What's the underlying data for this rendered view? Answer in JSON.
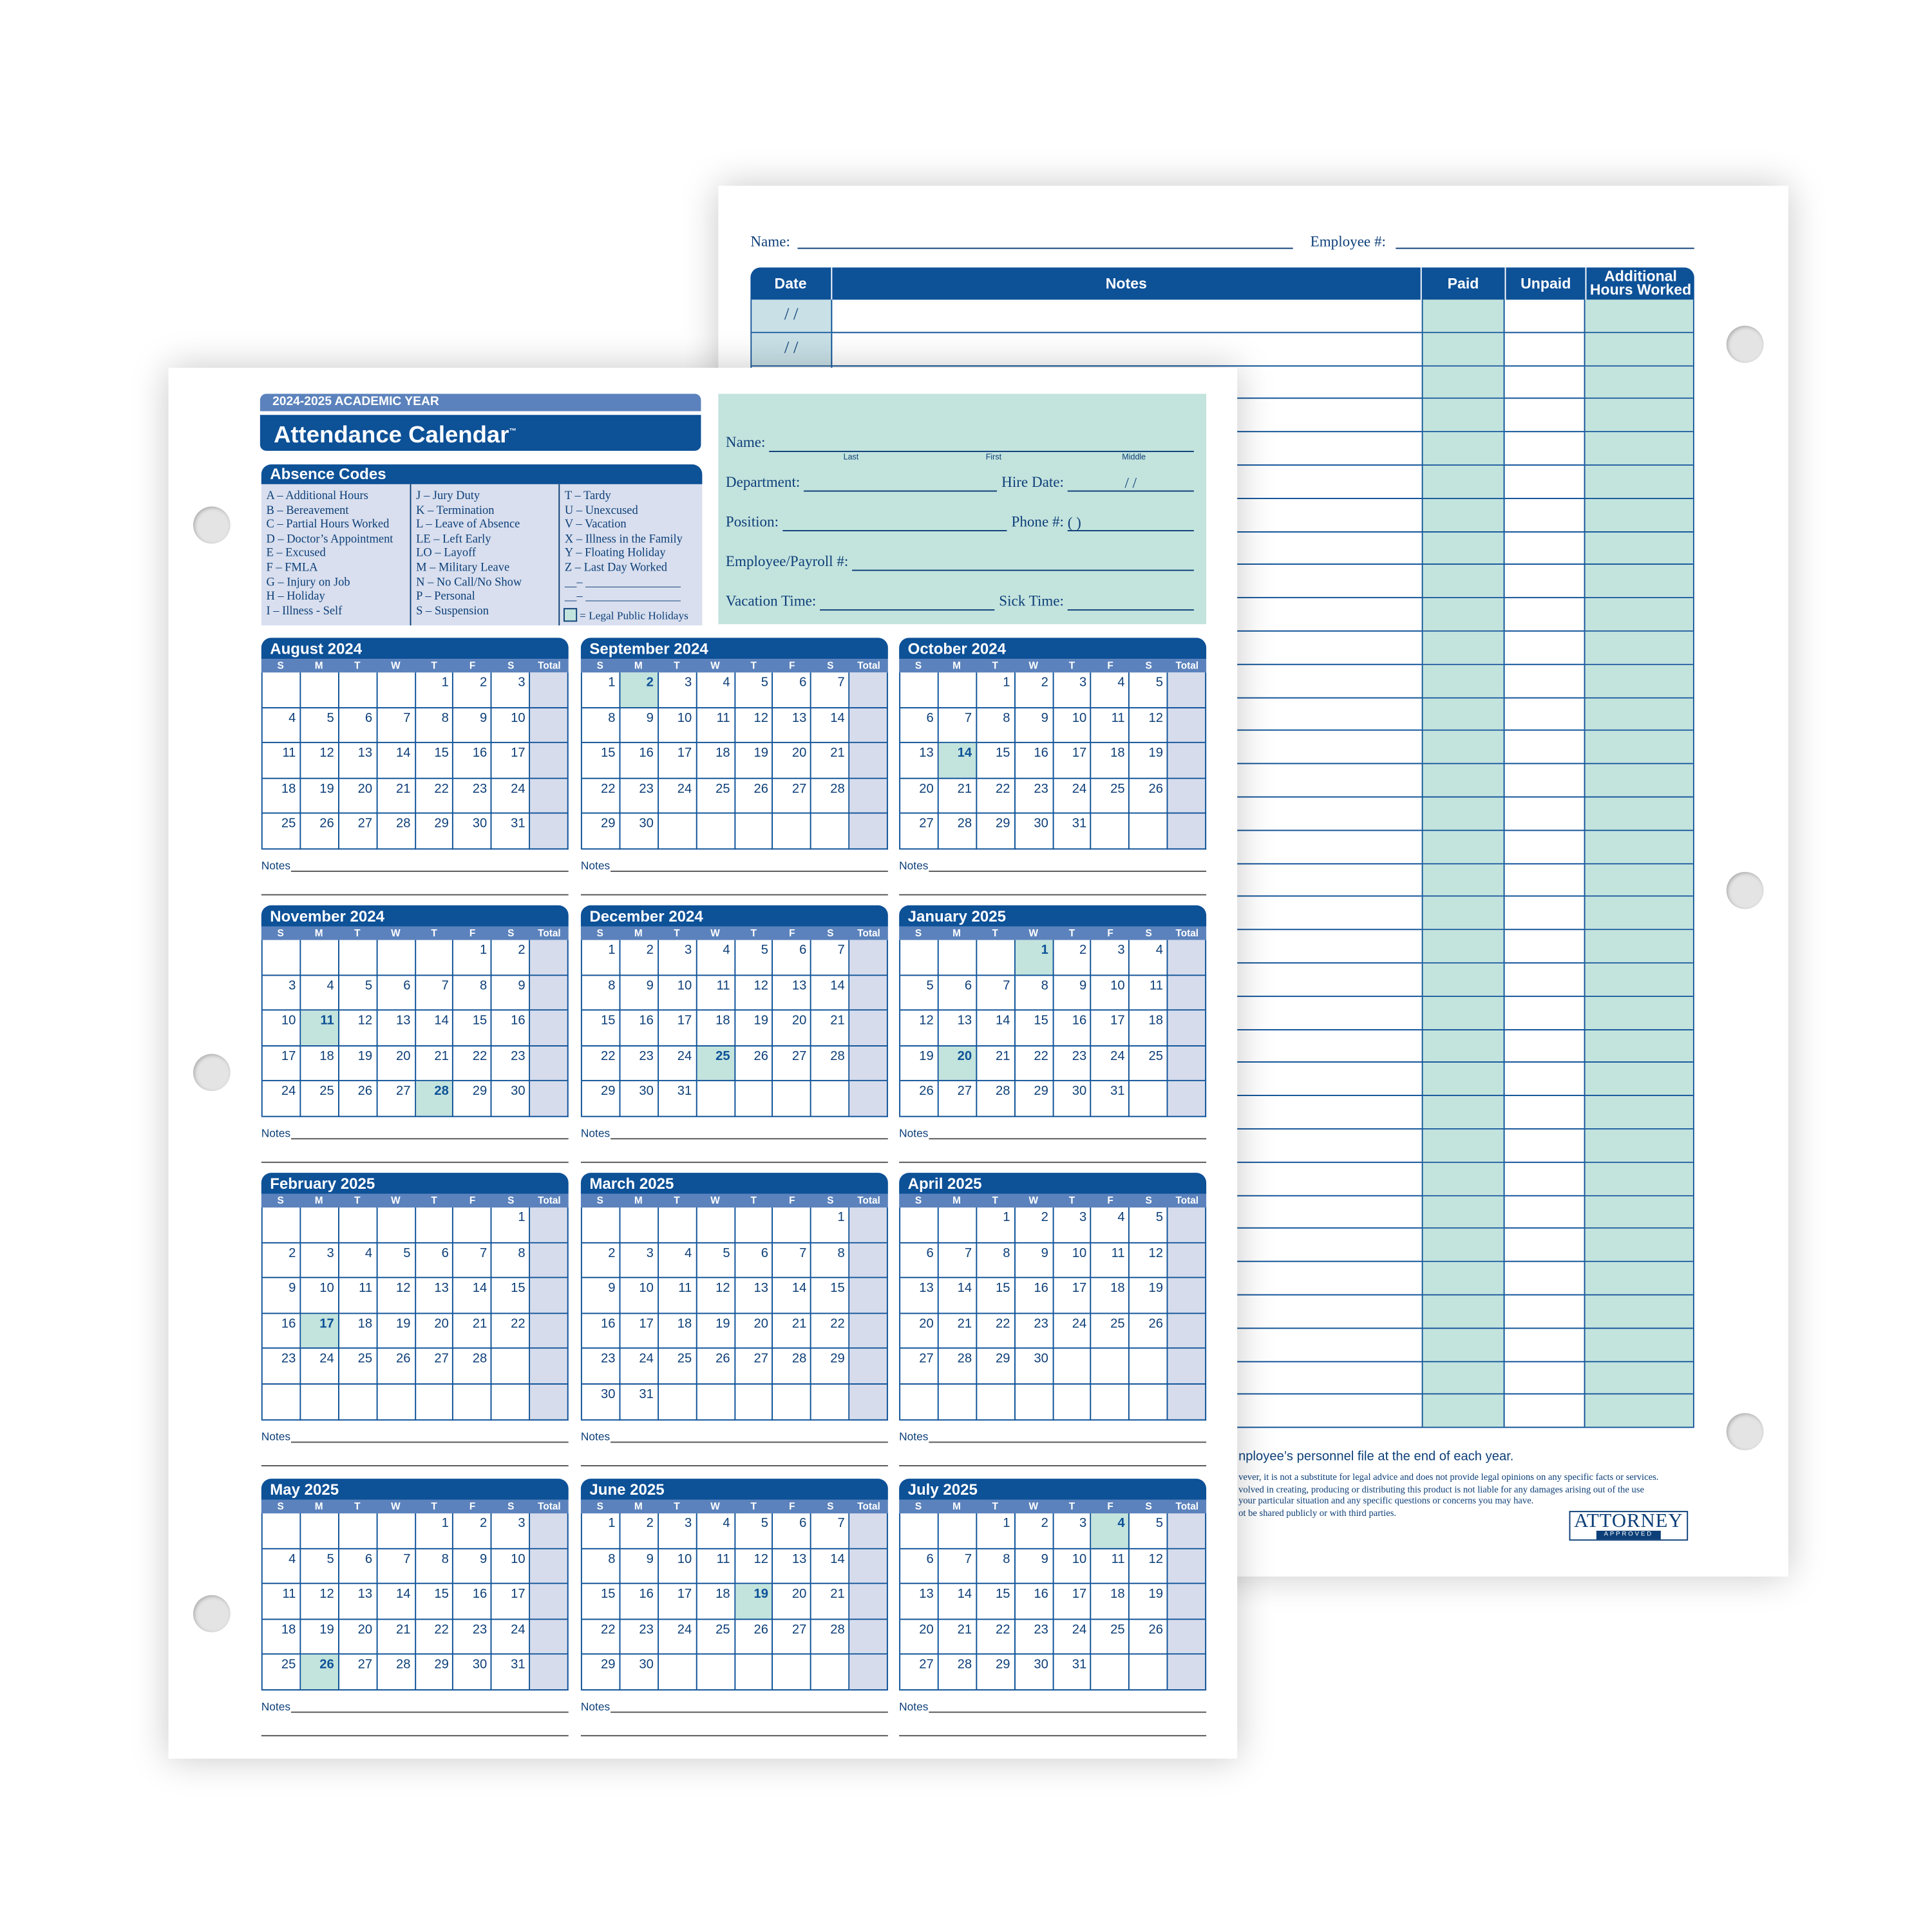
{
  "back_page": {
    "name_label": "Name:",
    "employee_label": "Employee #:",
    "table_headers": {
      "date": "Date",
      "notes": "Notes",
      "paid": "Paid",
      "unpaid": "Unpaid",
      "additional": "Additional Hours Worked"
    },
    "date_placeholder": "/   /",
    "row_count": 34,
    "footer_line": "nployee’s personnel file at the end of each year.",
    "disclaimer": [
      "vever, it is not a substitute for legal advice and does not provide legal opinions on any specific facts or services.",
      "volved in creating, producing or distributing this product is not liable for any damages arising out of the use",
      "your particular situation and any specific questions or concerns you may have.",
      "ot be shared publicly or with third parties."
    ],
    "logo": {
      "main": "ATTORNEY",
      "sub": "APPROVED"
    }
  },
  "front_page": {
    "academic_year": "2024-2025 ACADEMIC YEAR",
    "title": "Attendance Calendar",
    "trademark": "™",
    "absence_codes": {
      "heading": "Absence Codes",
      "columns": [
        [
          "A – Additional Hours",
          "B – Bereavement",
          "C – Partial Hours Worked",
          "D – Doctor’s Appointment",
          "E – Excused",
          "F – FMLA",
          "G – Injury on Job",
          "H – Holiday",
          "I – Illness - Self"
        ],
        [
          "J – Jury Duty",
          "K – Termination",
          "L – Leave of Absence",
          "LE – Left Early",
          "LO – Layoff",
          "M – Military Leave",
          "N – No Call/No Show",
          "P – Personal",
          "S – Suspension"
        ],
        [
          "T – Tardy",
          "U – Unexcused",
          "V – Vacation",
          "X – Illness in the Family",
          "Y – Floating Holiday",
          "Z – Last Day Worked",
          "__– ________________",
          "__– ________________"
        ]
      ],
      "legend": "= Legal Public Holidays"
    },
    "employee_info": {
      "name": "Name:",
      "last": "Last",
      "first": "First",
      "middle": "Middle",
      "department": "Department:",
      "hire_date": "Hire Date:",
      "hire_date_slashes": "/        /",
      "position": "Position:",
      "phone": "Phone #:",
      "phone_paren": "(      )",
      "payroll": "Employee/Payroll #:",
      "vacation": "Vacation Time:",
      "sick": "Sick Time:"
    },
    "weekday_headers": [
      "S",
      "M",
      "T",
      "W",
      "T",
      "F",
      "S",
      "Total"
    ],
    "notes_label": "Notes",
    "months": [
      {
        "name": "August 2024",
        "first_weekday": 4,
        "days": 31,
        "rows": 5,
        "holidays": []
      },
      {
        "name": "September 2024",
        "first_weekday": 0,
        "days": 30,
        "rows": 5,
        "holidays": [
          2
        ]
      },
      {
        "name": "October 2024",
        "first_weekday": 2,
        "days": 31,
        "rows": 5,
        "holidays": [
          14
        ]
      },
      {
        "name": "November 2024",
        "first_weekday": 5,
        "days": 30,
        "rows": 5,
        "holidays": [
          11,
          28
        ]
      },
      {
        "name": "December 2024",
        "first_weekday": 0,
        "days": 31,
        "rows": 5,
        "holidays": [
          25
        ]
      },
      {
        "name": "January 2025",
        "first_weekday": 3,
        "days": 31,
        "rows": 5,
        "holidays": [
          1,
          20
        ]
      },
      {
        "name": "February 2025",
        "first_weekday": 6,
        "days": 28,
        "rows": 6,
        "holidays": [
          17
        ]
      },
      {
        "name": "March 2025",
        "first_weekday": 6,
        "days": 31,
        "rows": 6,
        "holidays": []
      },
      {
        "name": "April 2025",
        "first_weekday": 2,
        "days": 30,
        "rows": 6,
        "holidays": []
      },
      {
        "name": "May 2025",
        "first_weekday": 4,
        "days": 31,
        "rows": 5,
        "holidays": [
          26
        ]
      },
      {
        "name": "June 2025",
        "first_weekday": 0,
        "days": 30,
        "rows": 5,
        "holidays": [
          19
        ]
      },
      {
        "name": "July 2025",
        "first_weekday": 2,
        "days": 31,
        "rows": 5,
        "holidays": [
          4
        ]
      }
    ]
  },
  "colors": {
    "primary_blue": "#0d5197",
    "light_blue": "#5b82bc",
    "holiday_teal": "#c3e3dd",
    "code_bg": "#d9dfee",
    "total_col": "#d6dcec"
  }
}
